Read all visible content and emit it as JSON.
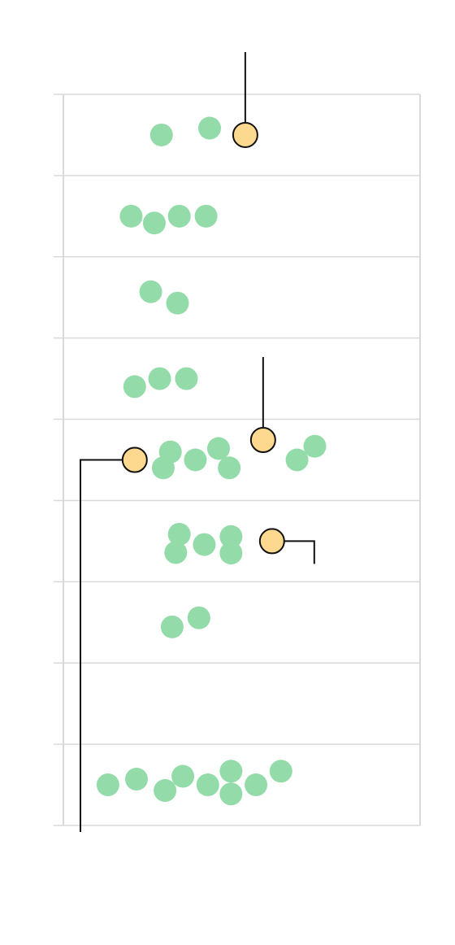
{
  "chart_data": {
    "type": "scatter",
    "title": "",
    "xlabel": "",
    "ylabel": "",
    "grid": true,
    "legend": "none",
    "x_range": [
      0,
      100
    ],
    "row_count": 9,
    "colors": {
      "regular_point": "#93dba9",
      "highlight_point": "#fdd98f",
      "highlight_outline": "#111111",
      "gridline": "#d9d9d9",
      "callout_line": "#111111"
    },
    "rows": [
      {
        "points": [
          {
            "x": 27.5,
            "offset": 0.0
          },
          {
            "x": 41.0,
            "offset": -0.6
          }
        ],
        "highlights": [
          {
            "x": 51.0,
            "offset": 0.0,
            "callout": "up"
          }
        ]
      },
      {
        "points": [
          {
            "x": 19.0,
            "offset": 0.0
          },
          {
            "x": 25.5,
            "offset": 0.6
          },
          {
            "x": 32.5,
            "offset": 0.0
          },
          {
            "x": 40.0,
            "offset": 0.0
          }
        ],
        "highlights": []
      },
      {
        "points": [
          {
            "x": 24.5,
            "offset": -0.5
          },
          {
            "x": 32.0,
            "offset": 0.5
          }
        ],
        "highlights": []
      },
      {
        "points": [
          {
            "x": 20.0,
            "offset": 0.7
          },
          {
            "x": 27.0,
            "offset": 0.0
          },
          {
            "x": 34.5,
            "offset": 0.0
          }
        ],
        "highlights": []
      },
      {
        "points": [
          {
            "x": 30.0,
            "offset": -0.7
          },
          {
            "x": 28.0,
            "offset": 0.7
          },
          {
            "x": 37.0,
            "offset": 0.0
          },
          {
            "x": 43.5,
            "offset": -1.0
          },
          {
            "x": 46.5,
            "offset": 0.7
          },
          {
            "x": 65.5,
            "offset": 0.0
          },
          {
            "x": 70.5,
            "offset": -1.2
          }
        ],
        "highlights": [
          {
            "x": 20.0,
            "offset": 0.0,
            "callout": "left-down"
          },
          {
            "x": 56.0,
            "offset": -1.75,
            "callout": "up"
          }
        ]
      },
      {
        "points": [
          {
            "x": 32.5,
            "offset": -0.6
          },
          {
            "x": 31.5,
            "offset": 1.0
          },
          {
            "x": 39.5,
            "offset": 0.3
          },
          {
            "x": 47.0,
            "offset": -0.4
          },
          {
            "x": 47.0,
            "offset": 1.05
          }
        ],
        "highlights": [
          {
            "x": 58.5,
            "offset": 0.0,
            "callout": "right-down"
          }
        ]
      },
      {
        "points": [
          {
            "x": 30.5,
            "offset": 0.4
          },
          {
            "x": 38.0,
            "offset": -0.4
          }
        ],
        "highlights": []
      },
      {
        "points": [],
        "highlights": []
      },
      {
        "points": [
          {
            "x": 12.5,
            "offset": 0.0
          },
          {
            "x": 20.5,
            "offset": -0.5
          },
          {
            "x": 28.5,
            "offset": 0.5
          },
          {
            "x": 33.5,
            "offset": -0.75
          },
          {
            "x": 40.5,
            "offset": 0.0
          },
          {
            "x": 47.0,
            "offset": -1.2
          },
          {
            "x": 47.0,
            "offset": 0.8
          },
          {
            "x": 54.0,
            "offset": 0.0
          },
          {
            "x": 61.0,
            "offset": -1.2
          }
        ],
        "highlights": []
      }
    ]
  }
}
